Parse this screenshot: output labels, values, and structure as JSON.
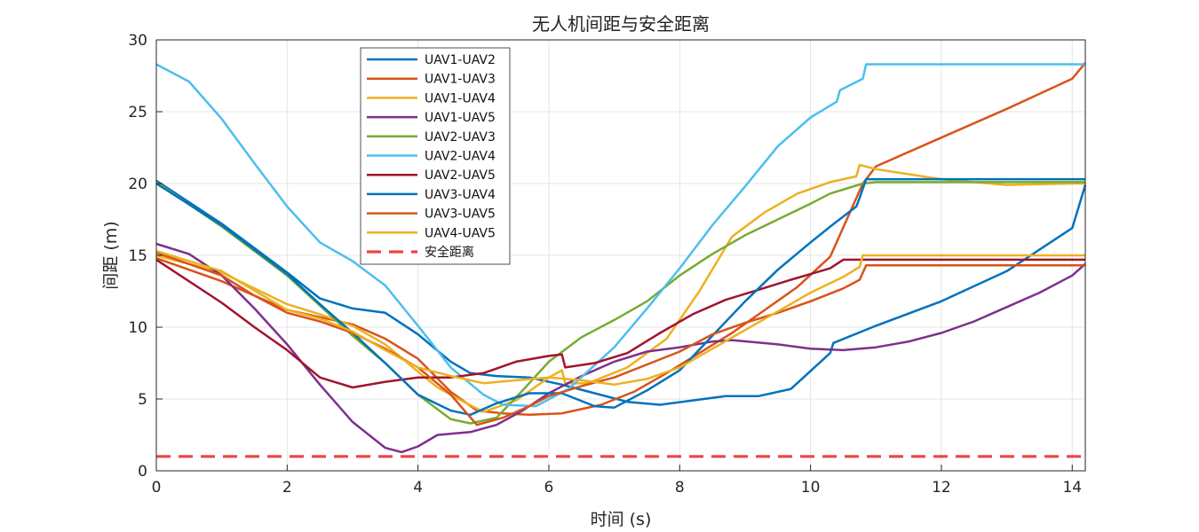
{
  "chart_data": {
    "type": "line",
    "title": "无人机间距与安全距离",
    "xlabel": "时间 (s)",
    "ylabel": "间距 (m)",
    "xlim": [
      0,
      14.2
    ],
    "ylim": [
      0,
      30
    ],
    "xticks": [
      0,
      2,
      4,
      6,
      8,
      10,
      12,
      14
    ],
    "yticks": [
      0,
      5,
      10,
      15,
      20,
      25,
      30
    ],
    "grid": true,
    "legend_position": "top-left inside",
    "series": [
      {
        "name": "UAV1-UAV2",
        "color": "#0072BD",
        "style": "solid",
        "x": [
          0,
          1,
          2,
          2.5,
          3,
          3.5,
          4,
          4.5,
          4.8,
          5.2,
          5.7,
          6.2,
          6.7,
          7.2,
          7.7,
          8.2,
          8.7,
          9.2,
          9.7,
          10.3,
          10.35,
          11,
          12,
          13,
          14,
          14.2
        ],
        "y": [
          20.2,
          17.2,
          13.8,
          12.0,
          11.3,
          11.0,
          9.5,
          7.6,
          6.8,
          6.6,
          6.5,
          6.0,
          5.4,
          4.8,
          4.6,
          4.9,
          5.2,
          5.2,
          5.7,
          8.2,
          8.9,
          10.1,
          11.8,
          13.9,
          16.9,
          19.9
        ]
      },
      {
        "name": "UAV1-UAV3",
        "color": "#D95319",
        "style": "solid",
        "x": [
          0,
          1,
          2,
          2.5,
          3,
          3.5,
          4,
          4.5,
          4.9,
          5.3,
          5.7,
          6.2,
          6.8,
          7.3,
          7.8,
          8.3,
          8.8,
          9.3,
          9.8,
          10.3,
          10.8,
          11,
          12,
          13,
          14,
          14.2
        ],
        "y": [
          14.8,
          13.2,
          11.2,
          10.7,
          10.2,
          9.2,
          7.8,
          5.5,
          4.2,
          4.0,
          3.9,
          4.0,
          4.6,
          5.5,
          6.8,
          8.2,
          9.6,
          11.2,
          12.8,
          14.9,
          20.0,
          21.2,
          23.2,
          25.2,
          27.3,
          28.4
        ]
      },
      {
        "name": "UAV1-UAV4",
        "color": "#EDB120",
        "style": "solid",
        "x": [
          0,
          1,
          2,
          2.5,
          3,
          3.5,
          4,
          4.3,
          4.7,
          5.0,
          5.5,
          6.0,
          6.2,
          6.25,
          6.6,
          7.2,
          7.8,
          8.3,
          8.8,
          9.3,
          9.8,
          10.3,
          10.7,
          10.75,
          11,
          12,
          13,
          14,
          14.2
        ],
        "y": [
          15.0,
          13.8,
          11.6,
          10.9,
          10.1,
          8.8,
          6.9,
          5.8,
          4.8,
          4.1,
          4.9,
          6.5,
          7.0,
          6.1,
          6.1,
          7.2,
          9.2,
          12.5,
          16.3,
          18.0,
          19.3,
          20.1,
          20.5,
          21.3,
          21.0,
          20.3,
          19.9,
          20.0,
          20.0
        ]
      },
      {
        "name": "UAV1-UAV5",
        "color": "#7E2F8E",
        "style": "solid",
        "x": [
          0,
          0.5,
          1,
          1.5,
          2,
          2.5,
          3,
          3.5,
          3.75,
          4.0,
          4.3,
          4.8,
          5.2,
          5.6,
          6.0,
          6.5,
          7.0,
          7.5,
          8.0,
          8.5,
          8.8,
          9.5,
          10.0,
          10.5,
          11,
          11.5,
          12,
          12.5,
          13,
          13.5,
          14.0,
          14.2
        ],
        "y": [
          15.8,
          15.1,
          13.6,
          11.3,
          8.8,
          6.0,
          3.4,
          1.6,
          1.3,
          1.7,
          2.5,
          2.7,
          3.2,
          4.2,
          5.4,
          6.6,
          7.6,
          8.3,
          8.6,
          9.0,
          9.1,
          8.8,
          8.5,
          8.4,
          8.6,
          9.0,
          9.6,
          10.4,
          11.4,
          12.4,
          13.6,
          14.4
        ]
      },
      {
        "name": "UAV2-UAV3",
        "color": "#77AC30",
        "style": "solid",
        "x": [
          0,
          1,
          2,
          2.5,
          3,
          3.5,
          4,
          4.5,
          4.8,
          5.2,
          5.6,
          6.0,
          6.5,
          7.0,
          7.5,
          8.0,
          8.5,
          9.0,
          9.5,
          10.0,
          10.3,
          10.8,
          11,
          12,
          13,
          14,
          14.2
        ],
        "y": [
          20.1,
          17.0,
          13.6,
          11.5,
          9.4,
          7.5,
          5.3,
          3.6,
          3.3,
          3.7,
          5.6,
          7.6,
          9.3,
          10.5,
          11.8,
          13.6,
          15.1,
          16.4,
          17.5,
          18.6,
          19.3,
          20.0,
          20.1,
          20.1,
          20.1,
          20.1,
          20.1
        ]
      },
      {
        "name": "UAV2-UAV4",
        "color": "#4DBEEE",
        "style": "solid",
        "x": [
          0,
          0.5,
          1,
          1.5,
          2,
          2.5,
          3,
          3.5,
          4,
          4.5,
          5.0,
          5.3,
          5.8,
          6.3,
          7.0,
          7.5,
          8.0,
          8.5,
          9.0,
          9.5,
          10.0,
          10.4,
          10.45,
          10.8,
          10.85,
          11,
          12,
          13,
          14,
          14.2
        ],
        "y": [
          28.3,
          27.1,
          24.5,
          21.4,
          18.4,
          15.9,
          14.6,
          12.9,
          10.1,
          7.2,
          5.3,
          4.6,
          4.5,
          5.7,
          8.6,
          11.3,
          14.1,
          17.1,
          19.8,
          22.6,
          24.6,
          25.7,
          26.5,
          27.3,
          28.3,
          28.3,
          28.3,
          28.3,
          28.3,
          28.3
        ]
      },
      {
        "name": "UAV2-UAV5",
        "color": "#A2142F",
        "style": "solid",
        "x": [
          0,
          1,
          1.5,
          2,
          2.5,
          3,
          3.5,
          4,
          4.5,
          5.0,
          5.5,
          6.0,
          6.2,
          6.25,
          6.7,
          7.2,
          7.7,
          8.2,
          8.7,
          9.2,
          9.7,
          10.0,
          10.3,
          10.5,
          11,
          12,
          13,
          14,
          14.2
        ],
        "y": [
          14.7,
          11.7,
          10.0,
          8.4,
          6.5,
          5.8,
          6.2,
          6.5,
          6.5,
          6.8,
          7.6,
          8.0,
          8.1,
          7.2,
          7.5,
          8.2,
          9.6,
          10.9,
          11.9,
          12.6,
          13.3,
          13.7,
          14.1,
          14.7,
          14.7,
          14.7,
          14.7,
          14.7,
          14.7
        ]
      },
      {
        "name": "UAV3-UAV4",
        "color": "#0072BD",
        "style": "solid",
        "x": [
          0,
          1,
          2,
          2.5,
          3,
          3.5,
          4,
          4.5,
          4.8,
          5.2,
          5.7,
          6.2,
          6.7,
          7.0,
          7.5,
          8.0,
          8.5,
          9.0,
          9.5,
          10.0,
          10.3,
          10.7,
          10.75,
          10.85,
          11,
          12,
          13,
          14,
          14.2
        ],
        "y": [
          20.0,
          17.1,
          13.7,
          11.6,
          9.6,
          7.5,
          5.3,
          4.2,
          3.9,
          4.7,
          5.4,
          5.4,
          4.5,
          4.4,
          5.6,
          7.0,
          9.4,
          11.8,
          14.0,
          15.9,
          17.0,
          18.4,
          19.0,
          20.3,
          20.3,
          20.3,
          20.3,
          20.3,
          20.3
        ]
      },
      {
        "name": "UAV3-UAV5",
        "color": "#D95319",
        "style": "solid",
        "x": [
          0,
          1,
          1.5,
          2,
          2.5,
          3,
          3.5,
          4,
          4.5,
          4.9,
          5.3,
          5.7,
          6.0,
          6.5,
          7.0,
          7.5,
          8.0,
          8.5,
          9.0,
          9.5,
          10.0,
          10.5,
          10.75,
          10.85,
          11,
          12,
          13,
          14,
          14.2
        ],
        "y": [
          15.2,
          13.6,
          12.2,
          11.0,
          10.4,
          9.6,
          8.5,
          7.2,
          5.3,
          3.2,
          3.7,
          4.5,
          5.2,
          5.9,
          6.5,
          7.4,
          8.3,
          9.5,
          10.3,
          11.0,
          11.8,
          12.7,
          13.3,
          14.3,
          14.3,
          14.3,
          14.3,
          14.3,
          14.3
        ]
      },
      {
        "name": "UAV4-UAV5",
        "color": "#EDB120",
        "style": "solid",
        "x": [
          0,
          1,
          2,
          2.5,
          3,
          3.5,
          4,
          4.5,
          5.0,
          5.5,
          6.0,
          6.5,
          7.0,
          7.5,
          8.0,
          8.5,
          9.0,
          9.5,
          10.0,
          10.5,
          10.75,
          10.8,
          11,
          12,
          13,
          14,
          14.2
        ],
        "y": [
          15.3,
          13.9,
          11.2,
          10.6,
          9.7,
          8.4,
          7.2,
          6.6,
          6.1,
          6.3,
          6.5,
          6.3,
          6.0,
          6.4,
          7.2,
          8.5,
          9.8,
          11.1,
          12.4,
          13.5,
          14.2,
          15.0,
          15.0,
          15.0,
          15.0,
          15.0,
          15.0
        ]
      },
      {
        "name": "安全距离",
        "color": "#EE4444",
        "style": "dashed",
        "x": [
          0,
          14.2
        ],
        "y": [
          1.0,
          1.0
        ]
      }
    ]
  }
}
